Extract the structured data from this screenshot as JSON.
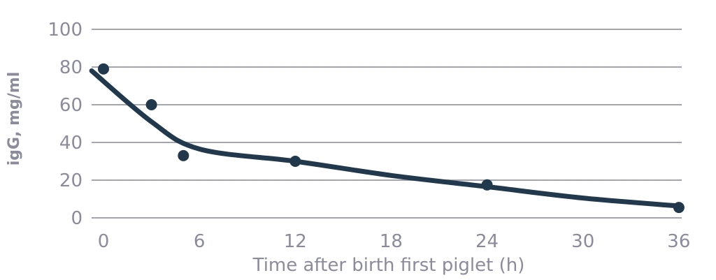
{
  "chart_data": {
    "type": "scatter",
    "title": "",
    "xlabel": "Time after birth first piglet (h)",
    "ylabel": "igG, mg/ml",
    "x_ticks": [
      0,
      6,
      12,
      18,
      24,
      30,
      36
    ],
    "y_ticks": [
      0,
      20,
      40,
      60,
      80,
      100
    ],
    "xlim": [
      -0.75,
      36.2
    ],
    "ylim": [
      0,
      100
    ],
    "grid": "horizontal-only",
    "legend": "none",
    "points": {
      "x": [
        0,
        3,
        5,
        12,
        24,
        36
      ],
      "y": [
        79,
        60,
        33,
        30,
        17.5,
        5.5
      ]
    },
    "trend_line": [
      [
        -0.74,
        78
      ],
      [
        3,
        51
      ],
      [
        6,
        36.5
      ],
      [
        12,
        30
      ],
      [
        18,
        22.5
      ],
      [
        24,
        16.5
      ],
      [
        30,
        10.5
      ],
      [
        36.15,
        6.2
      ]
    ],
    "colors": {
      "series": "#21384d",
      "grid": "#a5a4b2",
      "labels": "#8c8b9c",
      "background": "#ffffff"
    }
  }
}
